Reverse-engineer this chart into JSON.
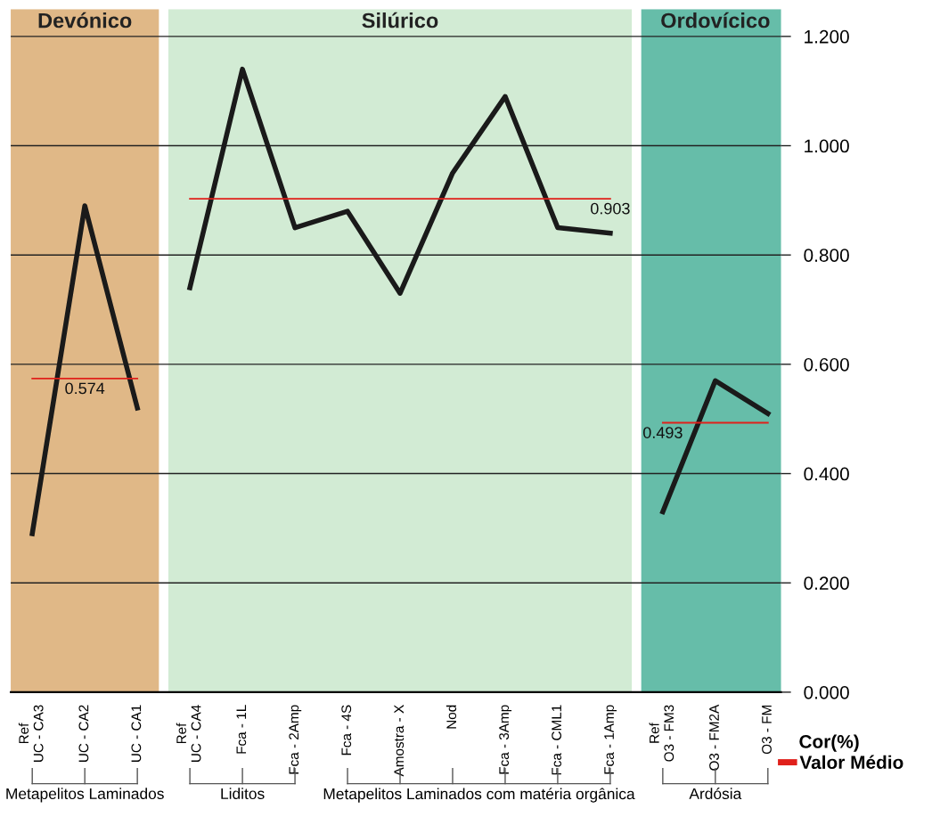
{
  "chart_data": {
    "type": "line",
    "ylabel": "Cor(%)",
    "categories": [
      "Ref\nUC - CA3",
      "UC - CA2",
      "UC - CA1",
      "Ref\nUC - CA4",
      "Fca - 1L",
      "Fca - 2Amp",
      "Fca - 4S",
      "Amostra - X",
      "Nod",
      "Fca - 3Amp",
      "Fca - CML1",
      "Fca - 1Amp",
      "Ref\nO3 - FM3",
      "O3 - FM2A",
      "O3 - FM"
    ],
    "series": [
      {
        "color": "#1a1a1a",
        "values": [
          0.29,
          0.89,
          0.52,
          null,
          null,
          null,
          null,
          null,
          null,
          null,
          null,
          null,
          null,
          null,
          null
        ]
      },
      {
        "color": "#1a1a1a",
        "values": [
          null,
          null,
          null,
          0.74,
          1.14,
          0.85,
          0.88,
          0.73,
          0.95,
          1.09,
          0.85,
          0.84,
          null,
          null,
          null
        ]
      },
      {
        "color": "#1a1a1a",
        "values": [
          null,
          null,
          null,
          null,
          null,
          null,
          null,
          null,
          null,
          null,
          null,
          null,
          0.33,
          0.57,
          0.51
        ]
      },
      {
        "name": "Valor Médio",
        "color": "#e0201b",
        "values": [
          0.574,
          0.574,
          0.574,
          null,
          null,
          null,
          null,
          null,
          null,
          null,
          null,
          null,
          null,
          null,
          null
        ],
        "value_labels": [
          null,
          "0.574",
          null,
          null,
          null,
          null,
          null,
          null,
          null,
          null,
          null,
          null,
          null,
          null,
          null
        ]
      },
      {
        "color": "#e0201b",
        "values": [
          null,
          null,
          null,
          0.903,
          0.903,
          0.903,
          0.903,
          0.903,
          0.903,
          0.903,
          0.903,
          0.903,
          null,
          null,
          null
        ],
        "value_labels": [
          null,
          null,
          null,
          null,
          null,
          null,
          null,
          null,
          null,
          null,
          null,
          "0.903",
          null,
          null,
          null
        ]
      },
      {
        "color": "#e0201b",
        "values": [
          null,
          null,
          null,
          null,
          null,
          null,
          null,
          null,
          null,
          null,
          null,
          null,
          0.493,
          0.493,
          0.493
        ],
        "value_labels": [
          null,
          null,
          null,
          null,
          null,
          null,
          null,
          null,
          null,
          null,
          null,
          null,
          "0.493",
          null,
          null
        ]
      }
    ],
    "ylim": [
      0,
      1.25
    ],
    "yticks": [
      {
        "value": 0,
        "label": "0.000"
      },
      {
        "value": 0.2,
        "label": "0.200"
      },
      {
        "value": 0.4,
        "label": "0.400"
      },
      {
        "value": 0.6,
        "label": "0.600"
      },
      {
        "value": 0.8,
        "label": "0.800"
      },
      {
        "value": 1.0,
        "label": "1.000"
      },
      {
        "value": 1.2,
        "label": "1.200"
      }
    ],
    "grid": "y",
    "legend": "bottom right",
    "marker": "none",
    "line_style": "solid",
    "bands": [
      {
        "axis": "x",
        "from": "Ref\nUC - CA3",
        "to": "UC - CA1",
        "label": "Devónico",
        "color": "#e0b887"
      },
      {
        "axis": "x",
        "from": "Ref\nUC - CA4",
        "to": "Fca - 1Amp",
        "label": "Silúrico",
        "color": "#d2ebd4"
      },
      {
        "axis": "x",
        "from": "Ref\nO3 - FM3",
        "to": "O3 - FM",
        "label": "Ordovícico",
        "color": "#66bda9"
      }
    ],
    "annotations": [
      "Metapelitos Laminados",
      "Liditos",
      "Metapelitos Laminados com matéria orgânica",
      "Ardósia"
    ]
  }
}
